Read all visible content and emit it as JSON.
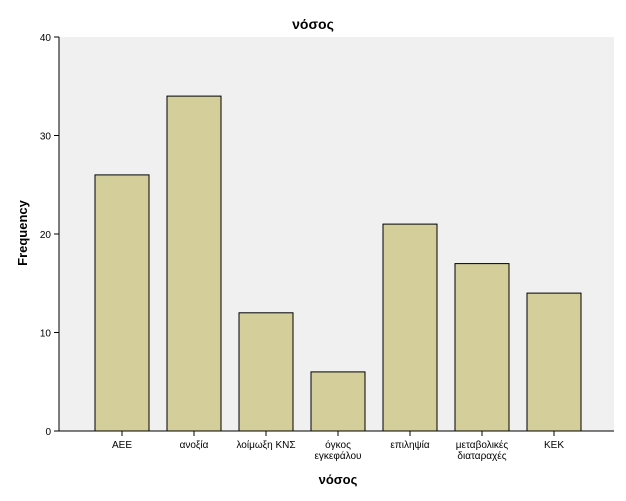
{
  "chart_data": {
    "type": "bar",
    "title": "νόσος",
    "xlabel": "νόσος",
    "ylabel": "Frequency",
    "categories": [
      [
        "ΑΕΕ"
      ],
      [
        "ανοξία"
      ],
      [
        "λοίμωξη ΚΝΣ"
      ],
      [
        "όγκος",
        "εγκεφάλου"
      ],
      [
        "επιληψία"
      ],
      [
        "μεταβολικές",
        "διαταραχές"
      ],
      [
        "ΚΕΚ"
      ]
    ],
    "values": [
      26,
      34,
      12,
      6,
      21,
      17,
      14
    ],
    "ylim": [
      0,
      40
    ],
    "yticks": [
      0,
      10,
      20,
      30,
      40
    ],
    "grid": false,
    "colors": {
      "bar_fill": "#d3ce9a",
      "bar_stroke": "#000000",
      "plot_bg": "#f0f0f0",
      "page_bg": "#ffffff"
    }
  }
}
